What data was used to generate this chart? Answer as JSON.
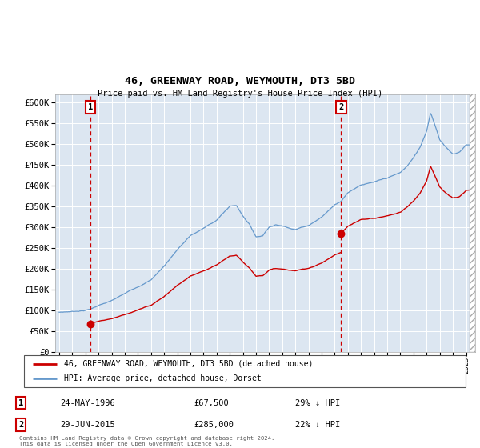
{
  "title": "46, GREENWAY ROAD, WEYMOUTH, DT3 5BD",
  "subtitle": "Price paid vs. HM Land Registry's House Price Index (HPI)",
  "legend_line1": "46, GREENWAY ROAD, WEYMOUTH, DT3 5BD (detached house)",
  "legend_line2": "HPI: Average price, detached house, Dorset",
  "footnote": "Contains HM Land Registry data © Crown copyright and database right 2024.\nThis data is licensed under the Open Government Licence v3.0.",
  "sale1_date": "24-MAY-1996",
  "sale1_price": "£67,500",
  "sale1_hpi": "29% ↓ HPI",
  "sale1_year": 1996.38,
  "sale1_value": 67500,
  "sale2_date": "29-JUN-2015",
  "sale2_price": "£285,000",
  "sale2_hpi": "22% ↓ HPI",
  "sale2_year": 2015.49,
  "sale2_value": 285000,
  "hpi_color": "#6699cc",
  "price_color": "#cc0000",
  "bg_color": "#dce6f1",
  "ylim": [
    0,
    620000
  ],
  "yticks": [
    0,
    50000,
    100000,
    150000,
    200000,
    250000,
    300000,
    350000,
    400000,
    450000,
    500000,
    550000,
    600000
  ],
  "xlim_start": 1993.7,
  "xlim_end": 2025.7,
  "hatch_right_start": 2025.3
}
